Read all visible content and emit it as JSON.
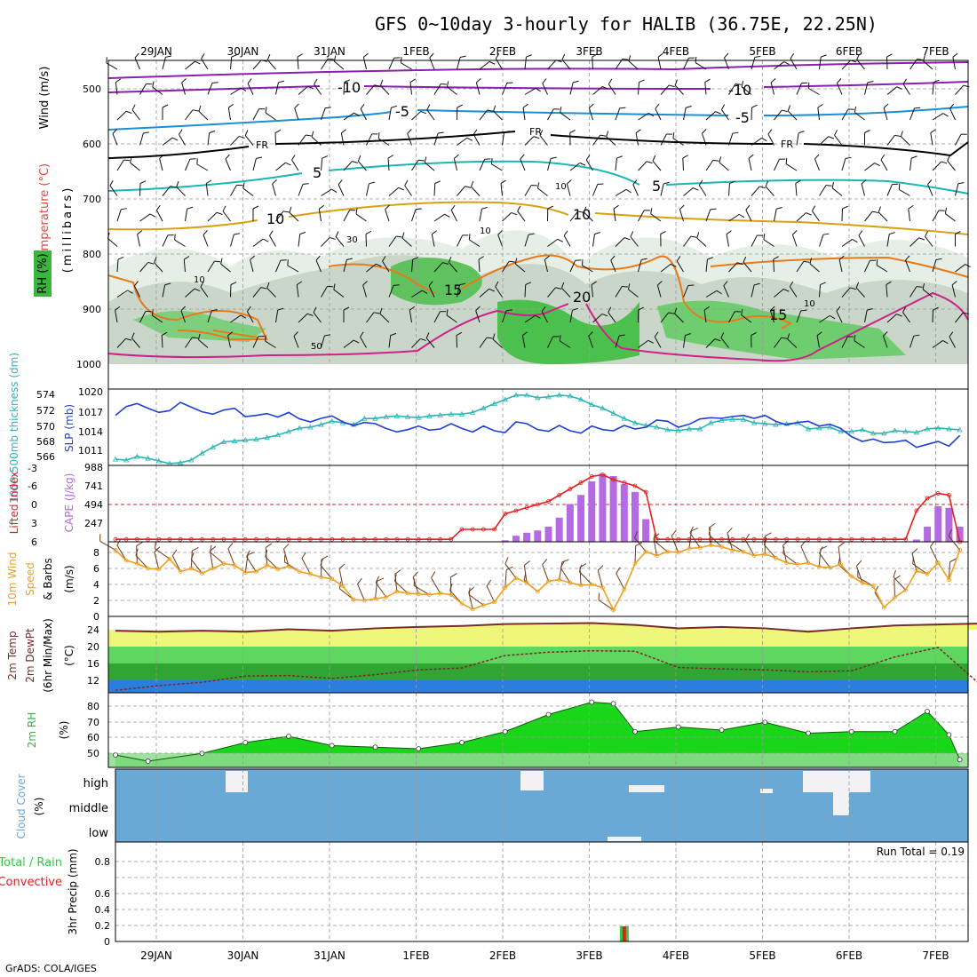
{
  "header": {
    "title": "GFS 0~10day 3-hourly for HALIB (36.75E, 22.25N)"
  },
  "footer": {
    "credit": "GrADS: COLA/IGES"
  },
  "dates": [
    "29JAN",
    "30JAN",
    "31JAN",
    "1FEB",
    "2FEB",
    "3FEB",
    "4FEB",
    "5FEB",
    "6FEB",
    "7FEB"
  ],
  "colors": {
    "temperature_label": "#e8453c",
    "rh_label": "#3cb44b",
    "wind_label": "#000000",
    "thickness": "#2ab5b5",
    "slp": "#1f3fd0",
    "cape": "#b36ae2",
    "lifted_index": "#e02020",
    "speed": "#f0a020",
    "barbs": "#6b3a1a",
    "temp2m": "#7a2a2a",
    "cloud_bg": "#6aa8d6",
    "precip_total": "#2ecc40",
    "precip_conv": "#e02020"
  },
  "panels": {
    "upper": {
      "ylabel_temperature": "Temperature (°C)",
      "ylabel_wind": "Wind (m/s)",
      "ylabel_mb": "(millibars)",
      "ylabel_rh": "RH (%)",
      "pressure_ticks": [
        "500",
        "600",
        "700",
        "800",
        "900",
        "1000"
      ],
      "contour_labels": [
        "-10",
        "-10",
        "-5",
        "-5",
        "FR",
        "FR",
        "FR",
        "5",
        "5",
        "10",
        "10",
        "15",
        "20",
        "15",
        "10",
        "10",
        "30",
        "10",
        "10",
        "50"
      ]
    },
    "slp": {
      "ylabel_thickness": "1000-500mb thickness (dm)",
      "ylabel_slp": "SLP (mb)",
      "thickness_ticks": [
        "574",
        "572",
        "570",
        "568",
        "566"
      ],
      "slp_ticks": [
        "1020",
        "1017",
        "1014",
        "1011"
      ]
    },
    "cape": {
      "ylabel_li": "Lifted Index",
      "ylabel_cape": "CAPE (J/kg)",
      "li_ticks": [
        "-6",
        "-3",
        "0",
        "3",
        "6"
      ],
      "cape_ticks": [
        "988",
        "741",
        "494",
        "247"
      ]
    },
    "wind10": {
      "ylabel1": "10m Wind",
      "ylabel2": "Speed",
      "ylabel3": "& Barbs",
      "unit": "(m/s)",
      "ticks": [
        "0",
        "2",
        "4",
        "6",
        "8"
      ]
    },
    "temp2m": {
      "ylabel1": "2m Temp",
      "ylabel2": "2m DewPt",
      "ylabel3": "(6hr Min/Max)",
      "unit": "(°C)",
      "ticks": [
        "12",
        "16",
        "20",
        "24"
      ]
    },
    "rh2m": {
      "ylabel": "2m RH",
      "unit": "(%)",
      "ticks": [
        "50",
        "60",
        "70",
        "80"
      ]
    },
    "cloud": {
      "ylabel": "Cloud Cover",
      "unit": "(%)",
      "levels": [
        "high",
        "middle",
        "low"
      ]
    },
    "precip": {
      "ylabel1": "Total / Rain",
      "ylabel2": "Convective",
      "ylabel3": "3hr Precip (mm)",
      "run_total": "Run Total = 0.19",
      "ticks": [
        "0",
        "0.2",
        "0.4",
        "0.6",
        "0.8"
      ]
    }
  },
  "chart_data": [
    {
      "type": "line",
      "name": "slp_thickness",
      "x": [
        "28JAN12",
        "28JAN15",
        "28JAN18",
        "28JAN21",
        "29JAN00",
        "29JAN03",
        "29JAN06",
        "29JAN09",
        "29JAN12",
        "29JAN15",
        "29JAN18",
        "29JAN21",
        "30JAN00",
        "30JAN03",
        "30JAN06",
        "30JAN09",
        "30JAN12",
        "30JAN15",
        "30JAN18",
        "30JAN21",
        "31JAN00",
        "31JAN03",
        "31JAN06",
        "31JAN09",
        "31JAN12",
        "31JAN15",
        "31JAN18",
        "31JAN21",
        "01FEB00",
        "01FEB03",
        "01FEB06",
        "01FEB09",
        "01FEB12",
        "01FEB15",
        "01FEB18",
        "01FEB21",
        "02FEB00",
        "02FEB03",
        "02FEB06",
        "02FEB09",
        "02FEB12",
        "02FEB15",
        "02FEB18",
        "02FEB21",
        "03FEB00",
        "03FEB03",
        "03FEB06",
        "03FEB09",
        "03FEB12",
        "03FEB15",
        "03FEB18",
        "03FEB21",
        "04FEB00",
        "04FEB03",
        "04FEB06",
        "04FEB09",
        "04FEB12",
        "04FEB15",
        "04FEB18",
        "04FEB21",
        "05FEB00",
        "05FEB03",
        "05FEB06",
        "05FEB09",
        "05FEB12",
        "05FEB15",
        "05FEB18",
        "05FEB21",
        "06FEB00",
        "06FEB03",
        "06FEB06",
        "06FEB09",
        "06FEB12",
        "06FEB15",
        "06FEB18",
        "06FEB21",
        "07FEB00",
        "07FEB03",
        "07FEB06"
      ],
      "series": [
        {
          "name": "SLP (mb)",
          "values": [
            1016,
            1017.5,
            1018,
            1017.2,
            1016.5,
            1016.8,
            1018.2,
            1017.4,
            1016.6,
            1016.2,
            1016.9,
            1017.2,
            1015.8,
            1016,
            1016.3,
            1015.7,
            1016.5,
            1015.4,
            1014.9,
            1015.5,
            1015.9,
            1014.9,
            1014.3,
            1014.8,
            1014.6,
            1013.8,
            1013.2,
            1013.6,
            1014.2,
            1013.5,
            1013.7,
            1014.6,
            1013.8,
            1013.2,
            1014.2,
            1013.4,
            1013.1,
            1014.9,
            1014.6,
            1013.6,
            1013.3,
            1014.3,
            1013.4,
            1013,
            1014.2,
            1013.6,
            1013.4,
            1014.3,
            1013.7,
            1014,
            1015.2,
            1015,
            1014,
            1014.5,
            1015.4,
            1015.6,
            1015.5,
            1015.8,
            1016,
            1015.5,
            1016,
            1015,
            1014.4,
            1014.8,
            1015,
            1014.2,
            1014.5,
            1013.8,
            1012.4,
            1011.6,
            1012,
            1011.4,
            1011.5,
            1011.8,
            1010.6,
            1011.1,
            1011.6,
            1010.8,
            1012.6
          ]
        },
        {
          "name": "thickness (dm)",
          "values": [
            566.2,
            566.1,
            566.5,
            566.3,
            566,
            565.7,
            565.8,
            566.1,
            566.9,
            567.6,
            568.2,
            568.3,
            568.4,
            568.5,
            568.7,
            569,
            569.4,
            569.8,
            569.9,
            570.2,
            570.6,
            570.4,
            570.2,
            570.9,
            570.9,
            571.1,
            571.2,
            571.1,
            571,
            571.2,
            571.3,
            571.4,
            571.4,
            571.6,
            572.1,
            572.6,
            573.1,
            573.6,
            573.6,
            573.3,
            573.4,
            573.6,
            573.5,
            573.1,
            572.5,
            572.1,
            571.5,
            570.9,
            570.4,
            570.1,
            569.9,
            569.6,
            569.5,
            569.7,
            569.7,
            570.4,
            570.7,
            570.8,
            570.8,
            570.4,
            570.3,
            570.2,
            570.3,
            570.4,
            569.7,
            569.8,
            569.9,
            569.4,
            569.4,
            569.6,
            569.2,
            569.2,
            569.5,
            569.4,
            569.3,
            569.7,
            569.8,
            569.7,
            569.6
          ]
        }
      ],
      "xlabel": "",
      "ylim": [
        1008,
        1020
      ]
    },
    {
      "type": "bar",
      "name": "cape_li",
      "categories": [
        "02FEB00",
        "02FEB03",
        "02FEB06",
        "02FEB09",
        "02FEB12",
        "02FEB15",
        "02FEB18",
        "02FEB21",
        "03FEB00",
        "03FEB03",
        "03FEB06",
        "03FEB09",
        "03FEB12",
        "03FEB15",
        "06FEB18",
        "06FEB21",
        "07FEB00",
        "07FEB03",
        "07FEB06"
      ],
      "series": [
        {
          "name": "CAPE (J/kg)",
          "values": [
            20,
            80,
            120,
            150,
            200,
            320,
            500,
            620,
            800,
            900,
            870,
            760,
            660,
            300,
            30,
            200,
            470,
            450,
            200
          ]
        },
        {
          "name": "Lifted Index",
          "values": [
            1.5,
            1,
            0.5,
            0,
            -0.5,
            -1.5,
            -2.5,
            -3.5,
            -4.5,
            -4.8,
            -4,
            -3.5,
            -3,
            -2,
            1,
            -1,
            -1.8,
            -1.5,
            6
          ]
        }
      ],
      "ylim": [
        0,
        988
      ]
    },
    {
      "type": "line",
      "name": "wind10_speed",
      "x": [
        "28JAN12",
        "28JAN15",
        "28JAN18",
        "28JAN21",
        "29JAN00",
        "29JAN03",
        "29JAN06",
        "29JAN09",
        "29JAN12",
        "29JAN15",
        "29JAN18",
        "29JAN21",
        "30JAN00",
        "30JAN03",
        "30JAN06",
        "30JAN09",
        "30JAN12",
        "30JAN15",
        "30JAN18",
        "30JAN21",
        "31JAN00",
        "31JAN03",
        "31JAN06",
        "31JAN09",
        "31JAN12",
        "31JAN15",
        "31JAN18",
        "31JAN21",
        "01FEB00",
        "01FEB03",
        "01FEB06",
        "01FEB09",
        "01FEB12",
        "01FEB15",
        "01FEB18",
        "01FEB21",
        "02FEB00",
        "02FEB03",
        "02FEB06",
        "02FEB09",
        "02FEB12",
        "02FEB15",
        "02FEB18",
        "02FEB21",
        "03FEB00",
        "03FEB03",
        "03FEB06",
        "03FEB09",
        "03FEB12",
        "03FEB15",
        "03FEB18",
        "03FEB21",
        "04FEB00",
        "04FEB03",
        "04FEB06",
        "04FEB09",
        "04FEB12",
        "04FEB15",
        "04FEB18",
        "04FEB21",
        "05FEB00",
        "05FEB03",
        "05FEB06",
        "05FEB09",
        "05FEB12",
        "05FEB15",
        "05FEB18",
        "05FEB21",
        "06FEB00",
        "06FEB03",
        "06FEB06",
        "06FEB09",
        "06FEB12",
        "06FEB15",
        "06FEB18",
        "06FEB21",
        "07FEB00",
        "07FEB03",
        "07FEB06"
      ],
      "series": [
        {
          "name": "Speed",
          "values": [
            8.3,
            7,
            6.6,
            6,
            5.9,
            7.2,
            5.6,
            6,
            5.4,
            6,
            6.6,
            6.4,
            5.5,
            5.6,
            6.4,
            5.9,
            6.3,
            5.6,
            5.3,
            4.9,
            4.7,
            3.8,
            2.1,
            2,
            2.2,
            2.4,
            3.1,
            2.9,
            2.8,
            2.7,
            2.9,
            2.7,
            1.6,
            0.9,
            1.4,
            1.8,
            3.6,
            4.8,
            4.2,
            3.1,
            4.4,
            4.6,
            4.2,
            3.9,
            4,
            3.6,
            0.8,
            3.4,
            6.6,
            8.1,
            7.6,
            8.1,
            8,
            8.5,
            8.6,
            8.9,
            8.7,
            8.3,
            8.1,
            7.6,
            7.8,
            7.3,
            6.7,
            6.5,
            6.7,
            6.2,
            6.1,
            6.5,
            5,
            4.2,
            3.8,
            1.1,
            2.4,
            3.3,
            5.7,
            5.3,
            6.7,
            4.6,
            8.3
          ]
        }
      ],
      "ylim": [
        0,
        9
      ]
    },
    {
      "type": "area",
      "name": "temp2m",
      "x": [
        "28JAN12",
        "29JAN00",
        "29JAN12",
        "30JAN00",
        "30JAN12",
        "31JAN00",
        "31JAN12",
        "01FEB00",
        "01FEB12",
        "02FEB00",
        "02FEB12",
        "03FEB00",
        "03FEB12",
        "04FEB00",
        "04FEB12",
        "05FEB00",
        "05FEB12",
        "06FEB00",
        "06FEB12",
        "07FEB00",
        "07FEB06"
      ],
      "series": [
        {
          "name": "2m Temp",
          "values": [
            23,
            22.8,
            23,
            22.8,
            23.3,
            23,
            23.5,
            23.8,
            24,
            24.4,
            24.5,
            24.6,
            24.2,
            23.5,
            23.8,
            23.5,
            22.8,
            23.5,
            24.1,
            24.3,
            24.5
          ]
        },
        {
          "name": "2m DewPt",
          "values": [
            10.5,
            11.5,
            12.2,
            13.5,
            13.6,
            13,
            13.8,
            14.8,
            15.2,
            17.8,
            18.5,
            18.8,
            18.7,
            15.3,
            15,
            14.8,
            14.4,
            14.6,
            17.5,
            19.5,
            11.5
          ]
        }
      ],
      "ylim": [
        10,
        26
      ]
    },
    {
      "type": "area",
      "name": "rh2m",
      "x": [
        "28JAN12",
        "28JAN21",
        "29JAN12",
        "30JAN00",
        "30JAN12",
        "31JAN00",
        "31JAN12",
        "01FEB00",
        "01FEB12",
        "02FEB00",
        "02FEB12",
        "03FEB00",
        "03FEB06",
        "03FEB12",
        "04FEB00",
        "04FEB12",
        "05FEB00",
        "05FEB12",
        "06FEB00",
        "06FEB12",
        "06FEB21",
        "07FEB03",
        "07FEB06"
      ],
      "series": [
        {
          "name": "2m RH",
          "values": [
            48,
            44,
            49,
            56,
            60,
            54,
            53,
            52,
            56,
            63,
            74,
            82,
            81,
            63,
            66,
            64,
            69,
            62,
            63,
            63,
            76,
            61,
            45
          ]
        }
      ],
      "ylim": [
        40,
        88
      ]
    },
    {
      "type": "bar",
      "name": "precip",
      "categories": [
        "03FEB09"
      ],
      "series": [
        {
          "name": "Total / Rain",
          "values": [
            0.19
          ]
        },
        {
          "name": "Convective",
          "values": [
            0.19
          ]
        }
      ],
      "ylim": [
        0,
        1
      ]
    }
  ]
}
